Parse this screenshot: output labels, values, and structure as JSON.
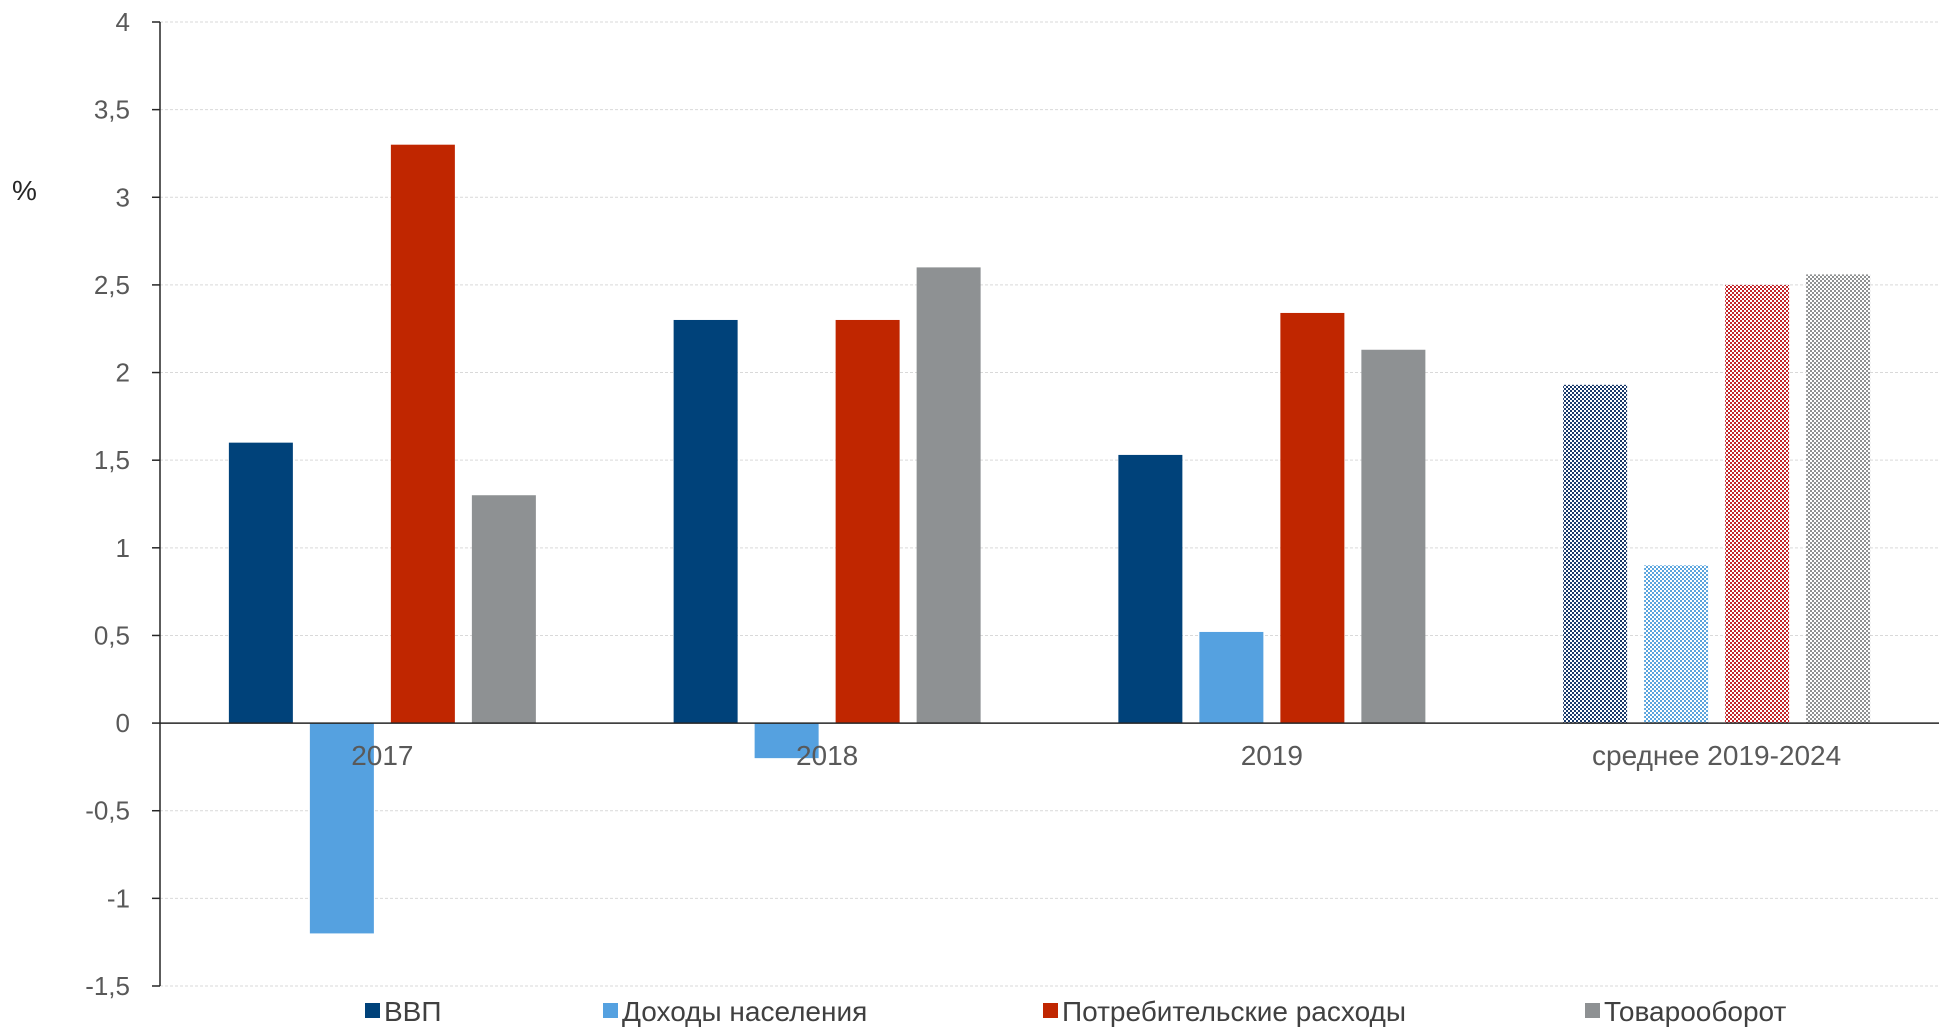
{
  "chart_data": {
    "type": "bar",
    "ylabel": "%",
    "categories": [
      "2017",
      "2018",
      "2019",
      "среднее 2019-2024"
    ],
    "ylim": [
      -1.5,
      4
    ],
    "yticks": [
      4,
      3.5,
      3,
      2.5,
      2,
      1.5,
      1,
      0.5,
      0,
      -0.5,
      -1,
      -1.5
    ],
    "ytick_labels": [
      "4",
      "3,5",
      "3",
      "2,5",
      "2",
      "1,5",
      "1",
      "0,5",
      "0",
      "-0,5",
      "-1",
      "-1,5"
    ],
    "grid": true,
    "legend_position": "bottom",
    "series": [
      {
        "name": "ВВП",
        "color": "#00427a",
        "hatch_color": "#1a3a6b",
        "values": [
          1.6,
          2.3,
          1.53,
          1.93
        ]
      },
      {
        "name": "Доходы населения",
        "color": "#55a1e0",
        "hatch_color": "#5aa4dd",
        "values": [
          -1.2,
          -0.2,
          0.52,
          0.9
        ]
      },
      {
        "name": "Потребительские расходы",
        "color": "#c02600",
        "hatch_color": "#c4262b",
        "values": [
          3.3,
          2.3,
          2.34,
          2.5
        ]
      },
      {
        "name": "Товарооборот",
        "color": "#8e9193",
        "hatch_color": "#8f9192",
        "values": [
          1.3,
          2.6,
          2.13,
          2.56
        ]
      }
    ],
    "patterned_categories": [
      "среднее 2019-2024"
    ]
  }
}
